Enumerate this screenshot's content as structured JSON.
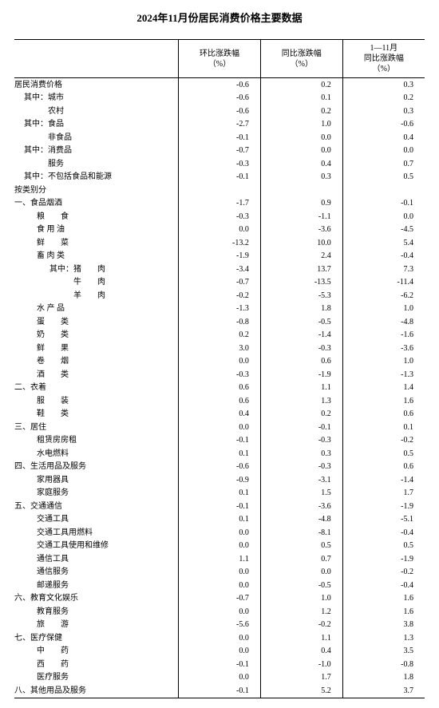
{
  "title": "2024年11月份居民消费价格主要数据",
  "columns": {
    "c1": {
      "line1": "环比涨跌幅",
      "line2": "（%）"
    },
    "c2": {
      "line1": "同比涨跌幅",
      "line2": "（%）"
    },
    "c3": {
      "line1": "1—11月",
      "line2": "同比涨跌幅",
      "line3": "（%）"
    }
  },
  "rows": [
    {
      "label": "居民消费价格",
      "indent": 0,
      "v1": "-0.6",
      "v2": "0.2",
      "v3": "0.3"
    },
    {
      "label": "其中：城市",
      "indent": 1,
      "v1": "-0.6",
      "v2": "0.1",
      "v3": "0.2"
    },
    {
      "label": "　　　农村",
      "indent": 1,
      "v1": "-0.6",
      "v2": "0.2",
      "v3": "0.3"
    },
    {
      "label": "其中：食品",
      "indent": 1,
      "v1": "-2.7",
      "v2": "1.0",
      "v3": "-0.6"
    },
    {
      "label": "　　　非食品",
      "indent": 1,
      "v1": "-0.1",
      "v2": "0.0",
      "v3": "0.4"
    },
    {
      "label": "其中：消费品",
      "indent": 1,
      "v1": "-0.7",
      "v2": "0.0",
      "v3": "0.0"
    },
    {
      "label": "　　　服务",
      "indent": 1,
      "v1": "-0.3",
      "v2": "0.4",
      "v3": "0.7"
    },
    {
      "label": "其中：不包括食品和能源",
      "indent": 1,
      "v1": "-0.1",
      "v2": "0.3",
      "v3": "0.5"
    },
    {
      "label": "按类别分",
      "indent": 0,
      "v1": "",
      "v2": "",
      "v3": ""
    },
    {
      "label": "一、食品烟酒",
      "indent": 0,
      "v1": "-1.7",
      "v2": "0.9",
      "v3": "-0.1"
    },
    {
      "label": "粮　　食",
      "indent": 2,
      "v1": "-0.3",
      "v2": "-1.1",
      "v3": "0.0"
    },
    {
      "label": "食 用 油",
      "indent": 2,
      "v1": "0.0",
      "v2": "-3.6",
      "v3": "-4.5"
    },
    {
      "label": "鲜　　菜",
      "indent": 2,
      "v1": "-13.2",
      "v2": "10.0",
      "v3": "5.4"
    },
    {
      "label": "畜 肉 类",
      "indent": 2,
      "v1": "-1.9",
      "v2": "2.4",
      "v3": "-0.4"
    },
    {
      "label": "其中：猪　　肉",
      "indent": 3,
      "v1": "-3.4",
      "v2": "13.7",
      "v3": "7.3"
    },
    {
      "label": "　　　牛　　肉",
      "indent": 3,
      "v1": "-0.7",
      "v2": "-13.5",
      "v3": "-11.4"
    },
    {
      "label": "　　　羊　　肉",
      "indent": 3,
      "v1": "-0.2",
      "v2": "-5.3",
      "v3": "-6.2"
    },
    {
      "label": "水 产 品",
      "indent": 2,
      "v1": "-1.3",
      "v2": "1.8",
      "v3": "1.0"
    },
    {
      "label": "蛋　　类",
      "indent": 2,
      "v1": "-0.8",
      "v2": "-0.5",
      "v3": "-4.8"
    },
    {
      "label": "奶　　类",
      "indent": 2,
      "v1": "0.2",
      "v2": "-1.4",
      "v3": "-1.6"
    },
    {
      "label": "鲜　　果",
      "indent": 2,
      "v1": "3.0",
      "v2": "-0.3",
      "v3": "-3.6"
    },
    {
      "label": "卷　　烟",
      "indent": 2,
      "v1": "0.0",
      "v2": "0.6",
      "v3": "1.0"
    },
    {
      "label": "酒　　类",
      "indent": 2,
      "v1": "-0.3",
      "v2": "-1.9",
      "v3": "-1.3"
    },
    {
      "label": "二、衣着",
      "indent": 0,
      "v1": "0.6",
      "v2": "1.1",
      "v3": "1.4"
    },
    {
      "label": "服　　装",
      "indent": 2,
      "v1": "0.6",
      "v2": "1.3",
      "v3": "1.6"
    },
    {
      "label": "鞋　　类",
      "indent": 2,
      "v1": "0.4",
      "v2": "0.2",
      "v3": "0.6"
    },
    {
      "label": "三、居住",
      "indent": 0,
      "v1": "0.0",
      "v2": "-0.1",
      "v3": "0.1"
    },
    {
      "label": "租赁房房租",
      "indent": 2,
      "v1": "-0.1",
      "v2": "-0.3",
      "v3": "-0.2"
    },
    {
      "label": "水电燃料",
      "indent": 2,
      "v1": "0.1",
      "v2": "0.3",
      "v3": "0.5"
    },
    {
      "label": "四、生活用品及服务",
      "indent": 0,
      "v1": "-0.6",
      "v2": "-0.3",
      "v3": "0.6"
    },
    {
      "label": "家用器具",
      "indent": 2,
      "v1": "-0.9",
      "v2": "-3.1",
      "v3": "-1.4"
    },
    {
      "label": "家庭服务",
      "indent": 2,
      "v1": "0.1",
      "v2": "1.5",
      "v3": "1.7"
    },
    {
      "label": "五、交通通信",
      "indent": 0,
      "v1": "-0.1",
      "v2": "-3.6",
      "v3": "-1.9"
    },
    {
      "label": "交通工具",
      "indent": 2,
      "v1": "0.1",
      "v2": "-4.8",
      "v3": "-5.1"
    },
    {
      "label": "交通工具用燃料",
      "indent": 2,
      "v1": "0.0",
      "v2": "-8.1",
      "v3": "-0.4"
    },
    {
      "label": "交通工具使用和维修",
      "indent": 2,
      "v1": "0.0",
      "v2": "0.5",
      "v3": "0.5"
    },
    {
      "label": "通信工具",
      "indent": 2,
      "v1": "1.1",
      "v2": "0.7",
      "v3": "-1.9"
    },
    {
      "label": "通信服务",
      "indent": 2,
      "v1": "0.0",
      "v2": "0.0",
      "v3": "-0.2"
    },
    {
      "label": "邮递服务",
      "indent": 2,
      "v1": "0.0",
      "v2": "-0.5",
      "v3": "-0.4"
    },
    {
      "label": "六、教育文化娱乐",
      "indent": 0,
      "v1": "-0.7",
      "v2": "1.0",
      "v3": "1.6"
    },
    {
      "label": "教育服务",
      "indent": 2,
      "v1": "0.0",
      "v2": "1.2",
      "v3": "1.6"
    },
    {
      "label": "旅　　游",
      "indent": 2,
      "v1": "-5.6",
      "v2": "-0.2",
      "v3": "3.8"
    },
    {
      "label": "七、医疗保健",
      "indent": 0,
      "v1": "0.0",
      "v2": "1.1",
      "v3": "1.3"
    },
    {
      "label": "中　　药",
      "indent": 2,
      "v1": "0.0",
      "v2": "0.4",
      "v3": "3.5"
    },
    {
      "label": "西　　药",
      "indent": 2,
      "v1": "-0.1",
      "v2": "-1.0",
      "v3": "-0.8"
    },
    {
      "label": "医疗服务",
      "indent": 2,
      "v1": "0.0",
      "v2": "1.7",
      "v3": "1.8"
    },
    {
      "label": "八、其他用品及服务",
      "indent": 0,
      "v1": "-0.1",
      "v2": "5.2",
      "v3": "3.7"
    }
  ],
  "style": {
    "background_color": "#ffffff",
    "text_color": "#000000",
    "border_color": "#000000",
    "title_fontsize": 13,
    "body_fontsize": 10,
    "col_widths": {
      "label": "40%",
      "num": "20%"
    }
  }
}
